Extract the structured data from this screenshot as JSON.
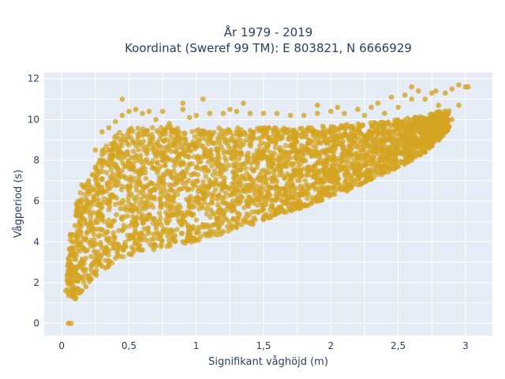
{
  "chart_data": {
    "type": "scatter",
    "title_lines": [
      "År 1979 - 2019",
      "Koordinat (Sweref 99 TM): E 803821, N 6666929"
    ],
    "xlabel": "Signifikant våghöjd (m)",
    "ylabel": "Vågperiod (s)",
    "xlim": [
      -0.13,
      3.2
    ],
    "ylim": [
      -0.6,
      12.3
    ],
    "x_ticks": [
      0,
      0.5,
      1,
      1.5,
      2,
      2.5,
      3
    ],
    "x_tick_labels": [
      "0",
      "0,5",
      "1",
      "1,5",
      "2",
      "2,5",
      "3"
    ],
    "y_ticks": [
      0,
      2,
      4,
      6,
      8,
      10,
      12
    ],
    "y_tick_labels": [
      "0",
      "2",
      "4",
      "6",
      "8",
      "10",
      "12"
    ],
    "grid": true,
    "marker_color": "#D4A420",
    "plot_background": "#E5ECF6",
    "series": [
      {
        "points": [
          [
            0.05,
            0.0
          ],
          [
            0.07,
            0.0
          ],
          [
            0.03,
            1.6
          ],
          [
            0.04,
            2.1
          ],
          [
            0.06,
            2.6
          ],
          [
            0.05,
            3.2
          ],
          [
            0.08,
            1.3
          ],
          [
            0.1,
            1.2
          ],
          [
            0.12,
            1.7
          ],
          [
            0.08,
            4.0
          ],
          [
            0.1,
            4.8
          ],
          [
            0.11,
            5.5
          ],
          [
            0.15,
            1.6
          ],
          [
            0.18,
            1.8
          ],
          [
            0.2,
            2.2
          ],
          [
            0.25,
            2.5
          ],
          [
            0.3,
            2.8
          ],
          [
            0.35,
            3.0
          ],
          [
            0.4,
            3.2
          ],
          [
            0.5,
            3.4
          ],
          [
            0.6,
            3.6
          ],
          [
            0.7,
            3.8
          ],
          [
            0.8,
            3.9
          ],
          [
            0.9,
            4.0
          ],
          [
            1.0,
            4.1
          ],
          [
            1.1,
            4.3
          ],
          [
            1.2,
            4.5
          ],
          [
            1.3,
            4.7
          ],
          [
            1.4,
            4.9
          ],
          [
            1.5,
            5.1
          ],
          [
            1.6,
            5.4
          ],
          [
            1.7,
            5.6
          ],
          [
            1.8,
            5.8
          ],
          [
            1.9,
            6.0
          ],
          [
            2.0,
            6.3
          ],
          [
            2.1,
            6.6
          ],
          [
            2.2,
            6.8
          ],
          [
            2.3,
            7.1
          ],
          [
            2.4,
            7.4
          ],
          [
            2.5,
            7.7
          ],
          [
            2.6,
            8.0
          ],
          [
            2.7,
            8.4
          ],
          [
            0.15,
            6.8
          ],
          [
            0.2,
            7.0
          ],
          [
            0.25,
            8.5
          ],
          [
            0.3,
            9.4
          ],
          [
            0.35,
            9.6
          ],
          [
            0.4,
            9.9
          ],
          [
            0.45,
            10.2
          ],
          [
            0.5,
            10.4
          ],
          [
            0.55,
            10.5
          ],
          [
            0.6,
            10.3
          ],
          [
            0.65,
            10.4
          ],
          [
            0.7,
            10.0
          ],
          [
            0.75,
            10.4
          ],
          [
            0.8,
            9.8
          ],
          [
            0.9,
            10.5
          ],
          [
            0.95,
            10.1
          ],
          [
            1.0,
            10.2
          ],
          [
            1.05,
            11.0
          ],
          [
            1.1,
            10.3
          ],
          [
            1.2,
            10.3
          ],
          [
            1.25,
            10.5
          ],
          [
            1.3,
            10.4
          ],
          [
            1.4,
            10.3
          ],
          [
            1.5,
            10.3
          ],
          [
            1.6,
            10.3
          ],
          [
            1.7,
            10.2
          ],
          [
            1.8,
            10.2
          ],
          [
            1.9,
            10.3
          ],
          [
            2.0,
            10.4
          ],
          [
            2.05,
            10.6
          ],
          [
            2.1,
            10.3
          ],
          [
            2.2,
            10.5
          ],
          [
            2.25,
            10.2
          ],
          [
            2.3,
            10.6
          ],
          [
            2.35,
            10.8
          ],
          [
            2.4,
            10.3
          ],
          [
            2.45,
            11.1
          ],
          [
            2.5,
            10.6
          ],
          [
            2.55,
            11.2
          ],
          [
            2.6,
            11.0
          ],
          [
            2.65,
            11.4
          ],
          [
            2.7,
            11.0
          ],
          [
            2.75,
            11.3
          ],
          [
            2.8,
            10.7
          ],
          [
            2.85,
            11.3
          ],
          [
            2.9,
            11.5
          ],
          [
            2.95,
            10.7
          ],
          [
            3.0,
            11.6
          ],
          [
            3.02,
            11.6
          ],
          [
            2.95,
            11.7
          ],
          [
            2.9,
            10.0
          ],
          [
            2.85,
            9.5
          ],
          [
            2.8,
            9.0
          ],
          [
            2.75,
            8.7
          ],
          [
            0.45,
            11.0
          ],
          [
            0.9,
            10.8
          ],
          [
            1.35,
            10.8
          ],
          [
            1.9,
            10.7
          ],
          [
            2.6,
            11.6
          ],
          [
            2.78,
            11.4
          ]
        ],
        "bands": [
          {
            "x": 0.04,
            "ymin": 1.4,
            "ymax": 3.3
          },
          {
            "x": 0.07,
            "ymin": 1.2,
            "ymax": 4.8
          },
          {
            "x": 0.1,
            "ymin": 1.2,
            "ymax": 5.8
          },
          {
            "x": 0.15,
            "ymin": 1.6,
            "ymax": 6.6
          },
          {
            "x": 0.2,
            "ymin": 2.0,
            "ymax": 7.0
          },
          {
            "x": 0.25,
            "ymin": 2.3,
            "ymax": 7.8
          },
          {
            "x": 0.3,
            "ymin": 2.6,
            "ymax": 8.6
          },
          {
            "x": 0.4,
            "ymin": 3.0,
            "ymax": 9.3
          },
          {
            "x": 0.5,
            "ymin": 3.3,
            "ymax": 9.6
          },
          {
            "x": 0.6,
            "ymin": 3.5,
            "ymax": 9.6
          },
          {
            "x": 0.75,
            "ymin": 3.7,
            "ymax": 9.7
          },
          {
            "x": 0.9,
            "ymin": 3.9,
            "ymax": 9.6
          },
          {
            "x": 1.0,
            "ymin": 4.0,
            "ymax": 9.5
          },
          {
            "x": 1.2,
            "ymin": 4.4,
            "ymax": 9.6
          },
          {
            "x": 1.4,
            "ymin": 4.8,
            "ymax": 9.6
          },
          {
            "x": 1.6,
            "ymin": 5.3,
            "ymax": 9.6
          },
          {
            "x": 1.8,
            "ymin": 5.7,
            "ymax": 9.6
          },
          {
            "x": 2.0,
            "ymin": 6.2,
            "ymax": 9.7
          },
          {
            "x": 2.2,
            "ymin": 6.7,
            "ymax": 9.8
          },
          {
            "x": 2.4,
            "ymin": 7.3,
            "ymax": 9.9
          },
          {
            "x": 2.5,
            "ymin": 7.6,
            "ymax": 10.0
          },
          {
            "x": 2.6,
            "ymin": 8.0,
            "ymax": 10.1
          },
          {
            "x": 2.7,
            "ymin": 8.4,
            "ymax": 10.2
          },
          {
            "x": 2.8,
            "ymin": 9.0,
            "ymax": 10.4
          },
          {
            "x": 2.88,
            "ymin": 9.5,
            "ymax": 10.5
          }
        ]
      }
    ]
  }
}
